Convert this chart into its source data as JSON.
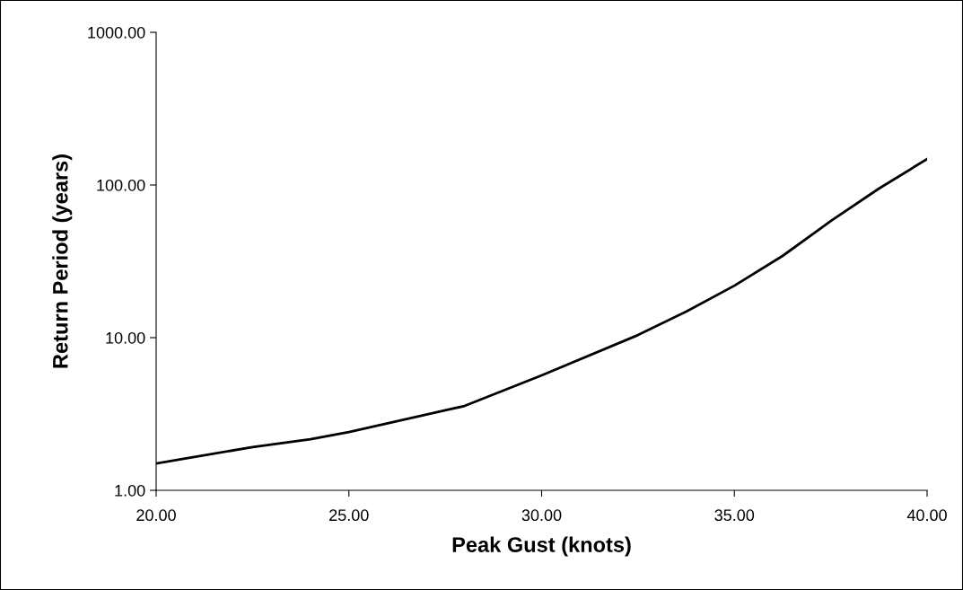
{
  "chart_data": {
    "type": "line",
    "xlabel": "Peak Gust (knots)",
    "ylabel": "Return Period (years)",
    "x": [
      20,
      22.5,
      24,
      25,
      27.5,
      28,
      30,
      32.5,
      33.75,
      35,
      36.25,
      37.5,
      38.75,
      40
    ],
    "series": [
      {
        "color": "#000000",
        "values": [
          1.5,
          1.92,
          2.16,
          2.41,
          3.34,
          3.57,
          5.66,
          10.4,
          14.8,
          21.9,
          34.3,
          58,
          94.7,
          148
        ]
      }
    ],
    "log": "y",
    "grid": false,
    "legend": false,
    "marker": "none",
    "line_style": "solid",
    "xlim": [
      20,
      40
    ],
    "xticks": [
      {
        "value": 20,
        "label": "20.00"
      },
      {
        "value": 25,
        "label": "25.00"
      },
      {
        "value": 30,
        "label": "30.00"
      },
      {
        "value": 35,
        "label": "35.00"
      },
      {
        "value": 40,
        "label": "40.00"
      }
    ],
    "ylim": [
      1,
      1000
    ],
    "yticks": [
      {
        "value": 1,
        "label": "1.00"
      },
      {
        "value": 10,
        "label": "10.00"
      },
      {
        "value": 100,
        "label": "100.00"
      },
      {
        "value": 1000,
        "label": "1000.00"
      }
    ]
  }
}
